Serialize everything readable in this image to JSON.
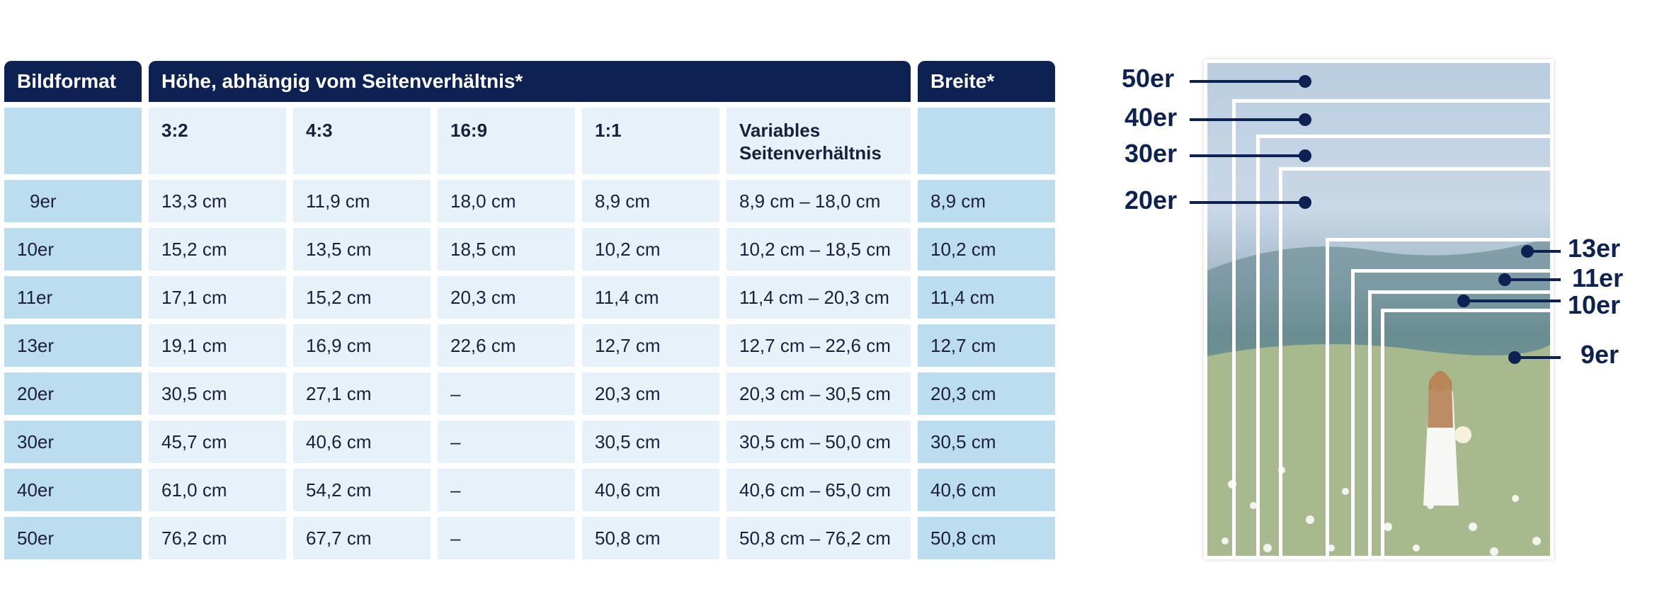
{
  "table": {
    "header": {
      "format": "Bildformat",
      "height": "Höhe, abhängig vom Seitenverhältnis*",
      "width": "Breite*"
    },
    "subheaders": [
      "3:2",
      "4:3",
      "16:9",
      "1:1",
      "Variables Seitenverhältnis"
    ],
    "rows": [
      {
        "format": "9er",
        "c1": "13,3 cm",
        "c2": "11,9 cm",
        "c3": "18,0 cm",
        "c4": "8,9 cm",
        "c5": "8,9 cm – 18,0 cm",
        "w": "8,9 cm"
      },
      {
        "format": "10er",
        "c1": "15,2 cm",
        "c2": "13,5 cm",
        "c3": "18,5 cm",
        "c4": "10,2 cm",
        "c5": "10,2 cm – 18,5 cm",
        "w": "10,2 cm"
      },
      {
        "format": "11er",
        "c1": "17,1 cm",
        "c2": "15,2 cm",
        "c3": "20,3 cm",
        "c4": "11,4 cm",
        "c5": "11,4 cm – 20,3 cm",
        "w": "11,4 cm"
      },
      {
        "format": "13er",
        "c1": "19,1 cm",
        "c2": "16,9 cm",
        "c3": "22,6 cm",
        "c4": "12,7 cm",
        "c5": "12,7 cm – 22,6 cm",
        "w": "12,7 cm"
      },
      {
        "format": "20er",
        "c1": "30,5 cm",
        "c2": "27,1 cm",
        "c3": "–",
        "c4": "20,3 cm",
        "c5": "20,3 cm – 30,5 cm",
        "w": "20,3 cm"
      },
      {
        "format": "30er",
        "c1": "45,7 cm",
        "c2": "40,6 cm",
        "c3": "–",
        "c4": "30,5 cm",
        "c5": "30,5 cm – 50,0 cm",
        "w": "30,5 cm"
      },
      {
        "format": "40er",
        "c1": "61,0 cm",
        "c2": "54,2 cm",
        "c3": "–",
        "c4": "40,6 cm",
        "c5": "40,6 cm – 65,0 cm",
        "w": "40,6 cm"
      },
      {
        "format": "50er",
        "c1": "76,2 cm",
        "c2": "67,7 cm",
        "c3": "–",
        "c4": "50,8 cm",
        "c5": "50,8 cm – 76,2 cm",
        "w": "50,8 cm"
      }
    ]
  },
  "illustration": {
    "labels_left": [
      "50er",
      "40er",
      "30er",
      "20er"
    ],
    "labels_right": [
      "13er",
      "11er",
      "10er",
      "9er"
    ]
  },
  "colors": {
    "header": "#0d2252",
    "light": "#e6f1f9",
    "medium": "#bcdcef"
  }
}
